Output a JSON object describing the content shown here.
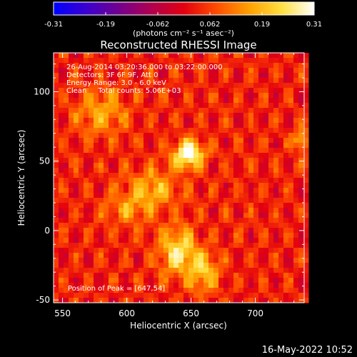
{
  "chart_data": {
    "type": "heatmap",
    "title": "Reconstructed RHESSI Image",
    "xlabel": "Heliocentric X (arcsec)",
    "ylabel": "Heliocentric Y (arcsec)",
    "xlim": [
      543,
      738
    ],
    "ylim": [
      -52,
      128
    ],
    "xticks": [
      550,
      600,
      650,
      700
    ],
    "yticks": [
      -50,
      0,
      50,
      100
    ],
    "grid": false,
    "colorbar": {
      "min": -0.31,
      "max": 0.31,
      "ticks": [
        "-0.31",
        "-0.19",
        "-0.062",
        "0.062",
        "0.19",
        "0.31"
      ],
      "label": "(photons cm⁻² s⁻¹ asec⁻²)",
      "colors": [
        "#0000ff",
        "#3b00d0",
        "#72008f",
        "#b0004f",
        "#e30010",
        "#ff4d00",
        "#ffa000",
        "#ffe040",
        "#ffffff"
      ]
    },
    "annotations": [
      "26-Aug-2014 03:20:36.000 to 03:22:00.000",
      "Detectors: 3F 6F 9F, Att 0",
      "Energy Range: 3.0 - 6.0 keV",
      "Clean     Total counts: 5.06E+03"
    ],
    "peak_label": "Position of Peak = [647,54]",
    "peak": [
      647,
      54
    ],
    "sources": [
      {
        "x": 648,
        "y": 55,
        "peak": 0.31,
        "sx": 8,
        "sy": 7
      },
      {
        "x": 640,
        "y": -15,
        "peak": 0.22,
        "sx": 10,
        "sy": 12
      },
      {
        "x": 660,
        "y": -30,
        "peak": 0.17,
        "sx": 8,
        "sy": 10
      },
      {
        "x": 620,
        "y": 30,
        "peak": 0.15,
        "sx": 14,
        "sy": 10
      },
      {
        "x": 580,
        "y": 85,
        "peak": 0.13,
        "sx": 14,
        "sy": 12
      },
      {
        "x": 735,
        "y": 65,
        "peak": 0.18,
        "sx": 4,
        "sy": 5
      },
      {
        "x": 600,
        "y": 15,
        "peak": 0.1,
        "sx": 12,
        "sy": 8
      }
    ]
  },
  "footer": {
    "date": "16-May-2022 10:52"
  }
}
